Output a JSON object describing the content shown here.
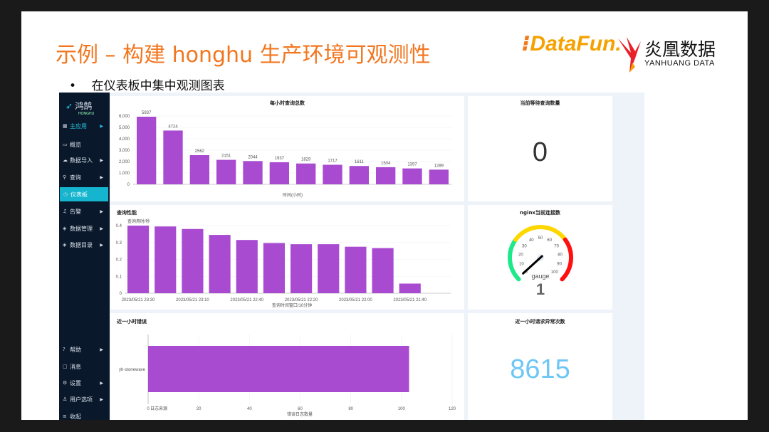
{
  "slide": {
    "title": "示例 – 构建 honghu 生产环境可观测性",
    "bullet": "在仪表板中集中观测图表",
    "logo_datafun": "DataFun.",
    "logo_yanhuang_cn": "炎凰数据",
    "logo_yanhuang_en": "YANHUANG DATA"
  },
  "sidebar": {
    "brand": "鸿鹄",
    "brand_sub": "HONGHU",
    "items": [
      {
        "label": "主应用",
        "icon": "grid-icon",
        "arrow": true
      },
      {
        "label": "概览",
        "icon": "monitor-icon",
        "arrow": false
      },
      {
        "label": "数据导入",
        "icon": "cloud-upload-icon",
        "arrow": true
      },
      {
        "label": "查询",
        "icon": "search-icon",
        "arrow": true
      },
      {
        "label": "仪表板",
        "icon": "dashboard-icon",
        "arrow": false,
        "active": true
      },
      {
        "label": "告警",
        "icon": "bell-icon",
        "arrow": true
      },
      {
        "label": "数据管理",
        "icon": "database-icon",
        "arrow": true
      },
      {
        "label": "数据目录",
        "icon": "layers-icon",
        "arrow": true
      }
    ],
    "bottom_items": [
      {
        "label": "帮助",
        "icon": "help-icon",
        "arrow": true
      },
      {
        "label": "消息",
        "icon": "message-icon",
        "arrow": false
      },
      {
        "label": "设置",
        "icon": "gear-icon",
        "arrow": true
      },
      {
        "label": "用户选项",
        "icon": "user-icon",
        "arrow": true
      },
      {
        "label": "收起",
        "icon": "collapse-icon",
        "arrow": false
      }
    ]
  },
  "panels": {
    "hourly": {
      "title": "每小时查询总数"
    },
    "waiting": {
      "title": "当前等待查询数量",
      "value": "0"
    },
    "perf": {
      "title": "查询性能"
    },
    "nginx": {
      "title": "nginx当前连接数",
      "label": "gauge",
      "value": "1"
    },
    "errors": {
      "title": "近一小时错误"
    },
    "exceptions": {
      "title": "近一小时请求异常次数",
      "value": "8615"
    }
  },
  "chart_data": [
    {
      "type": "bar",
      "title": "每小时查询总数",
      "xlabel": "时间(小时)",
      "ylabel": "",
      "ylim": [
        0,
        6000
      ],
      "yticks": [
        "0",
        "1,000",
        "2,000",
        "3,000",
        "4,000",
        "5,000",
        "6,000"
      ],
      "values": [
        5937,
        4724,
        2562,
        2151,
        2044,
        1937,
        1829,
        1717,
        1611,
        1504,
        1397,
        1289
      ],
      "color": "#a94bd1"
    },
    {
      "type": "bar",
      "title": "查询性能",
      "xlabel": "查询时间窗口/10分钟",
      "ylabel": "查询用时/秒",
      "ylim": [
        0,
        0.4
      ],
      "yticks": [
        "0",
        "0.1",
        "0.2",
        "0.3",
        "0.4"
      ],
      "xticks": [
        "2023/05/21 23:30",
        "2023/05/21 23:10",
        "2023/05/21 22:40",
        "2023/05/21 22:20",
        "2023/05/21 22:00",
        "2023/05/21 21:40"
      ],
      "values": [
        0.4,
        0.395,
        0.38,
        0.345,
        0.315,
        0.297,
        0.29,
        0.29,
        0.275,
        0.267,
        0.057
      ],
      "color": "#a94bd1"
    },
    {
      "type": "bar",
      "orientation": "horizontal",
      "title": "近一小时错误",
      "xlabel": "错误日志数量",
      "ylabel": "日志来源",
      "xlim": [
        0,
        120
      ],
      "xticks": [
        "0",
        "20",
        "40",
        "60",
        "80",
        "100",
        "120"
      ],
      "categories": [
        "yh-stonewave"
      ],
      "values": [
        103
      ],
      "color": "#a94bd1"
    },
    {
      "type": "gauge",
      "title": "nginx当前连接数",
      "min": 0,
      "max": 100,
      "ticks": [
        "0",
        "10",
        "20",
        "30",
        "40",
        "50",
        "60",
        "70",
        "80",
        "90",
        "100"
      ],
      "value": 1,
      "bands": [
        {
          "to": 30,
          "color": "#1de98b"
        },
        {
          "to": 70,
          "color": "#ffd700"
        },
        {
          "to": 100,
          "color": "#ff1010"
        }
      ]
    }
  ]
}
